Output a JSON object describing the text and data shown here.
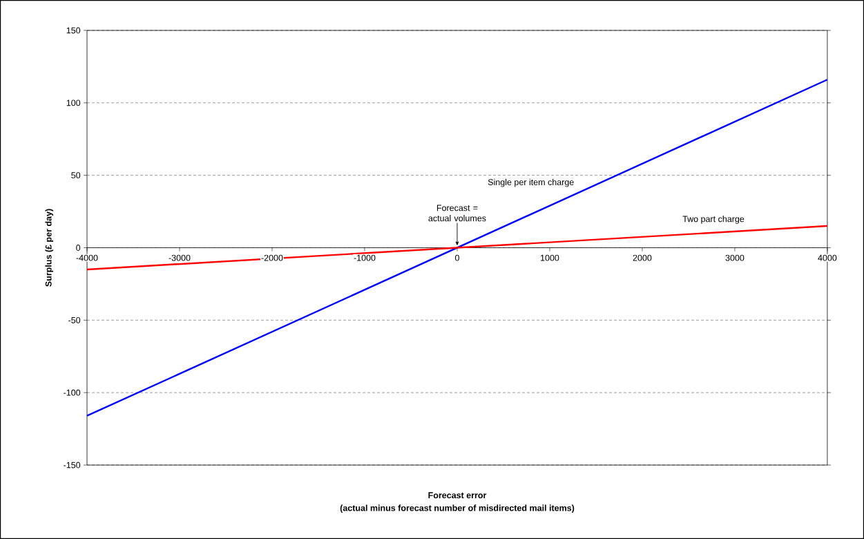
{
  "chart_data": {
    "type": "line",
    "xlabel": "Forecast error",
    "ylabel": "Surplus (£ per day)",
    "annotations": [
      {
        "text": "Forecast = actual volumes",
        "x": 0,
        "y": 0
      },
      "(actual minus forecast number of misdirected mail items)"
    ],
    "series": [
      {
        "name": "Single per item charge",
        "color": "#0000ff",
        "values": [
          -116,
          116
        ]
      },
      {
        "name": "Two part charge",
        "color": "#ff0000",
        "values": [
          -15,
          15
        ]
      }
    ],
    "x": [
      -4000,
      4000
    ],
    "xlim": [
      -4000,
      4000
    ],
    "ylim": [
      -150,
      150
    ],
    "xticks": [
      -4000,
      -3000,
      -2000,
      -1000,
      0,
      1000,
      2000,
      3000,
      4000
    ],
    "yticks": [
      -150,
      -100,
      -50,
      0,
      50,
      100,
      150
    ],
    "grid": "y",
    "legend": false,
    "marker": "none",
    "line_style": "solid"
  }
}
